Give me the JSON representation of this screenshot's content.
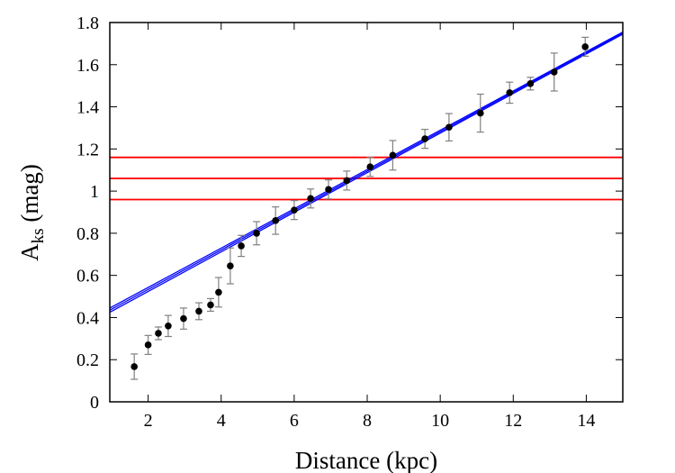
{
  "chart_data": {
    "type": "scatter",
    "title": "",
    "xlabel": "Distance (kpc)",
    "ylabel_main": "A",
    "ylabel_sub": "ks",
    "ylabel_unit": " (mag)",
    "xlim": [
      0.95,
      15
    ],
    "ylim": [
      0,
      1.8
    ],
    "xticks": [
      2,
      4,
      6,
      8,
      10,
      12,
      14
    ],
    "xtick_labels": [
      "2",
      "4",
      "6",
      "8",
      "10",
      "12",
      "14"
    ],
    "yticks": [
      0,
      0.2,
      0.4,
      0.6,
      0.8,
      1.0,
      1.2,
      1.4,
      1.6,
      1.8
    ],
    "ytick_labels": [
      "0",
      "0.2",
      "0.4",
      "0.6",
      "0.8",
      "1",
      "1.2",
      "1.4",
      "1.6",
      "1.8"
    ],
    "grid": false,
    "points": [
      {
        "x": 1.62,
        "y": 0.167,
        "err": 0.06
      },
      {
        "x": 2.0,
        "y": 0.27,
        "err": 0.045
      },
      {
        "x": 2.28,
        "y": 0.325,
        "err": 0.03
      },
      {
        "x": 2.55,
        "y": 0.36,
        "err": 0.05
      },
      {
        "x": 2.97,
        "y": 0.395,
        "err": 0.05
      },
      {
        "x": 3.39,
        "y": 0.43,
        "err": 0.04
      },
      {
        "x": 3.71,
        "y": 0.46,
        "err": 0.03
      },
      {
        "x": 3.93,
        "y": 0.52,
        "err": 0.07
      },
      {
        "x": 4.25,
        "y": 0.645,
        "err": 0.085
      },
      {
        "x": 4.55,
        "y": 0.74,
        "err": 0.05
      },
      {
        "x": 4.97,
        "y": 0.8,
        "err": 0.055
      },
      {
        "x": 5.49,
        "y": 0.86,
        "err": 0.065
      },
      {
        "x": 6.0,
        "y": 0.91,
        "err": 0.045
      },
      {
        "x": 6.45,
        "y": 0.965,
        "err": 0.045
      },
      {
        "x": 6.94,
        "y": 1.008,
        "err": 0.045
      },
      {
        "x": 7.44,
        "y": 1.05,
        "err": 0.045
      },
      {
        "x": 8.08,
        "y": 1.115,
        "err": 0.045
      },
      {
        "x": 8.7,
        "y": 1.17,
        "err": 0.07
      },
      {
        "x": 9.58,
        "y": 1.248,
        "err": 0.045
      },
      {
        "x": 10.24,
        "y": 1.303,
        "err": 0.065
      },
      {
        "x": 11.1,
        "y": 1.37,
        "err": 0.09
      },
      {
        "x": 11.9,
        "y": 1.467,
        "err": 0.05
      },
      {
        "x": 12.47,
        "y": 1.51,
        "err": 0.03
      },
      {
        "x": 13.12,
        "y": 1.565,
        "err": 0.09
      },
      {
        "x": 13.97,
        "y": 1.685,
        "err": 0.045
      }
    ],
    "fit_lines": [
      {
        "x": [
          0.95,
          15
        ],
        "y": [
          0.425,
          1.745
        ]
      },
      {
        "x": [
          0.95,
          15
        ],
        "y": [
          0.435,
          1.75
        ]
      },
      {
        "x": [
          0.95,
          15
        ],
        "y": [
          0.445,
          1.755
        ]
      }
    ],
    "horizontal_lines": [
      0.96,
      1.06,
      1.16
    ],
    "colors": {
      "points": "#000000",
      "errorbars": "#808080",
      "fit": "#0000ff",
      "hlines": "#ff0000"
    }
  }
}
